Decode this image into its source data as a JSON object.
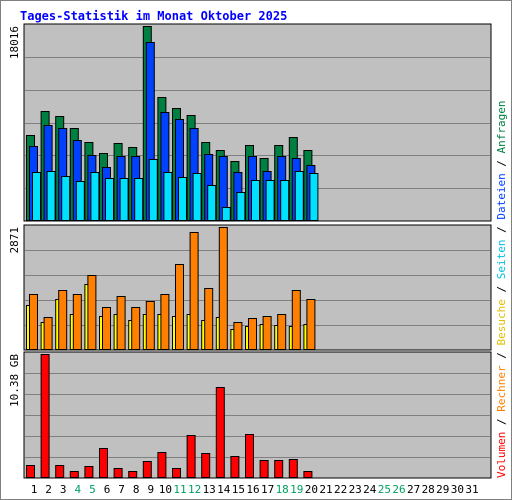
{
  "chart_data": {
    "type": "bar",
    "title": "Tages-Statistik im Monat Oktober 2025",
    "categories": [
      "1",
      "2",
      "3",
      "4",
      "5",
      "6",
      "7",
      "8",
      "9",
      "10",
      "11",
      "12",
      "13",
      "14",
      "15",
      "16",
      "17",
      "18",
      "19",
      "20",
      "21",
      "22",
      "23",
      "24",
      "25",
      "26",
      "27",
      "28",
      "29",
      "30",
      "31"
    ],
    "weekend_days": [
      "4",
      "5",
      "11",
      "12",
      "18",
      "19",
      "25",
      "26"
    ],
    "grid": true,
    "legend": "right-vertical",
    "panels": [
      {
        "name": "requests-files-pages",
        "max_label": "18016",
        "ylim": [
          0,
          18016
        ],
        "series": [
          {
            "name": "Anfragen",
            "color": "#008040",
            "values": [
              7900,
              10200,
              9700,
              8600,
              7300,
              6300,
              7200,
              6800,
              18016,
              11500,
              10400,
              9800,
              7300,
              6600,
              5500,
              7000,
              5800,
              7000,
              7800,
              6600
            ]
          },
          {
            "name": "Dateien",
            "color": "#0040ff",
            "values": [
              6900,
              8900,
              8600,
              7500,
              6100,
              5000,
              6000,
              6000,
              16500,
              10100,
              9400,
              8600,
              6200,
              6000,
              4500,
              6000,
              4600,
              6000,
              5800,
              5200
            ]
          },
          {
            "name": "Seiten",
            "color": "#00e0ff",
            "values": [
              4500,
              4600,
              4200,
              3700,
              4500,
              4000,
              4000,
              4000,
              5700,
              4500,
              4100,
              4400,
              3300,
              1300,
              2700,
              3800,
              3800,
              3800,
              4600,
              4400
            ]
          }
        ]
      },
      {
        "name": "visits-hosts",
        "max_label": "2871",
        "ylim": [
          0,
          2871
        ],
        "series": [
          {
            "name": "Besuche",
            "color": "#ffff00",
            "values": [
              1050,
              650,
              1200,
              850,
              1550,
              800,
              830,
              690,
              850,
              850,
              800,
              850,
              690,
              780,
              500,
              550,
              600,
              580,
              570,
              600
            ]
          },
          {
            "name": "Rechner",
            "color": "#ff8000",
            "values": [
              1300,
              770,
              1400,
              1300,
              1750,
              1000,
              1250,
              1000,
              1150,
              1300,
              2000,
              2750,
              1450,
              2871,
              650,
              750,
              800,
              850,
              1400,
              1200
            ]
          }
        ]
      },
      {
        "name": "volume",
        "max_label": "10.38 GB",
        "ylim": [
          0,
          10.38
        ],
        "series": [
          {
            "name": "Volumen",
            "color": "#ff0000",
            "values": [
              1.1,
              10.38,
              1.1,
              0.6,
              1.0,
              2.5,
              0.8,
              0.6,
              1.4,
              2.2,
              0.8,
              3.6,
              2.1,
              7.6,
              1.8,
              3.7,
              1.5,
              1.5,
              1.6,
              0.6
            ]
          }
        ]
      }
    ],
    "legend_text": [
      {
        "label": "Volumen",
        "color": "#ff0000"
      },
      {
        "label": " / ",
        "color": "#000000"
      },
      {
        "label": "Rechner",
        "color": "#ff8000"
      },
      {
        "label": " / ",
        "color": "#000000"
      },
      {
        "label": "Besuche",
        "color": "#e0c000"
      },
      {
        "label": " / ",
        "color": "#000000"
      },
      {
        "label": "Seiten",
        "color": "#00c0e0"
      },
      {
        "label": " / ",
        "color": "#000000"
      },
      {
        "label": "Dateien",
        "color": "#0040ff"
      },
      {
        "label": " / ",
        "color": "#000000"
      },
      {
        "label": "Anfragen",
        "color": "#008040"
      }
    ],
    "colors": {
      "title": "#0000ff",
      "panel_bg": "#c0c0c0",
      "weekday_label": "#000000",
      "weekend_label": "#00a060"
    }
  }
}
